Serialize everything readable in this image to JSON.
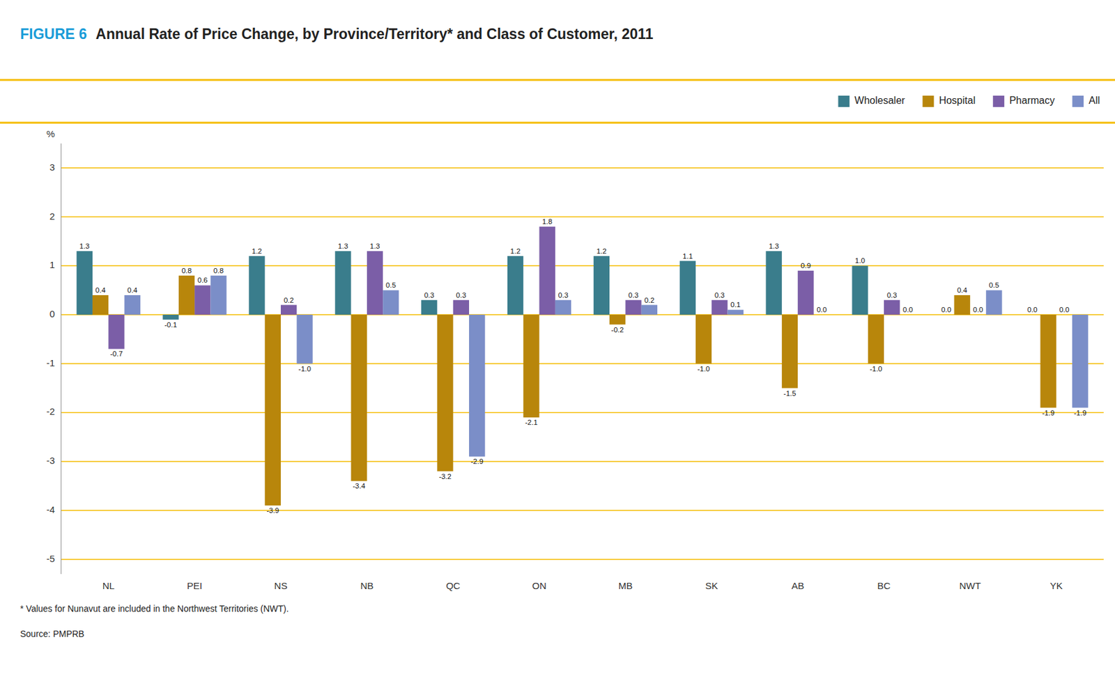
{
  "chart_data": {
    "type": "bar",
    "title": "FIGURE 6",
    "subtitle": "Annual Rate of Price Change, by Province/Territory* and Class of Customer, 2011",
    "y_label": "%",
    "annotations": [
      "* Values for Nunavut are included in the Northwest Territories (NWT).",
      "Source: PMPRB"
    ],
    "categories": [
      "NL",
      "PEI",
      "NS",
      "NB",
      "QC",
      "ON",
      "MB",
      "SK",
      "AB",
      "BC",
      "NWT",
      "YK"
    ],
    "series": [
      {
        "name": "Wholesaler",
        "color": "#3a7d8c",
        "values": [
          1.3,
          -0.1,
          1.2,
          1.3,
          0.3,
          1.2,
          1.2,
          1.1,
          1.3,
          1.0,
          0.0,
          0.0
        ],
        "value_labels": [
          "1.3",
          "-0.1",
          "1.2",
          "1.3",
          "0.3",
          "1.2",
          "1.2",
          "1.1",
          "1.3",
          "1.0",
          "0.0",
          "0.0"
        ]
      },
      {
        "name": "Hospital",
        "color": "#b8860b",
        "values": [
          0.4,
          0.8,
          -3.9,
          -3.4,
          -3.2,
          -2.1,
          -0.2,
          -1.0,
          -1.5,
          -1.0,
          0.4,
          -1.9
        ],
        "value_labels": [
          "0.4",
          "0.8",
          "-3.9",
          "-3.4",
          "-3.2",
          "-2.1",
          "-0.2",
          "-1.0",
          "-1.5",
          "-1.0",
          "0.4",
          "-1.9"
        ]
      },
      {
        "name": "Pharmacy",
        "color": "#7b5ea7",
        "values": [
          -0.7,
          0.6,
          0.2,
          1.3,
          0.3,
          1.8,
          0.3,
          0.3,
          0.9,
          0.3,
          0.0,
          0.0
        ],
        "value_labels": [
          "-0.7",
          "0.6",
          "0.2",
          "1.3",
          "0.3",
          "1.8",
          "0.3",
          "0.3",
          "0.9",
          "0.3",
          "0.0",
          "0.0"
        ]
      },
      {
        "name": "All",
        "color": "#7b8ec8",
        "values": [
          0.4,
          0.8,
          -1.0,
          0.5,
          -2.9,
          0.3,
          0.2,
          0.1,
          0.0,
          0.0,
          0.5,
          -1.9
        ],
        "value_labels": [
          "0.4",
          "0.8",
          "-1.0",
          "0.5",
          "-2.9",
          "0.3",
          "0.2",
          "0.1",
          "0.0",
          "0.0",
          "0.5",
          "-1.9"
        ]
      }
    ],
    "ylim": [
      -5.3,
      3.5
    ],
    "yticks": [
      -5,
      -4,
      -3,
      -2,
      -1,
      0,
      1,
      2,
      3
    ],
    "grid": true,
    "legend": "top-right",
    "data_labels": true
  }
}
